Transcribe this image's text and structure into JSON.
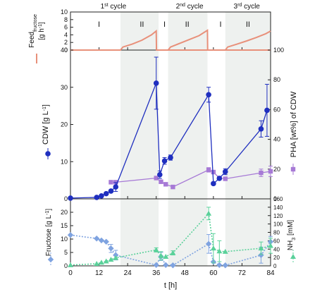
{
  "chart_data": [
    {
      "type": "line",
      "panel": "feed",
      "ylabel_line1": "Feed",
      "ylabel_sub": "fructose",
      "ylabel_line2": "[g h",
      "ylabel_sup": "-1",
      "ylabel_end": "]",
      "ylim": [
        0,
        10
      ],
      "yticks": [
        0,
        2,
        4,
        6,
        8,
        10
      ],
      "xlim": [
        0,
        84
      ],
      "phase_labels": [
        "I",
        "II",
        "I",
        "II",
        "I",
        "II"
      ],
      "phase_label_x": [
        12,
        30,
        39.5,
        49,
        63,
        74.5
      ],
      "cycles": [
        {
          "label_pre": "1",
          "label_sup": "st",
          "label_post": " cycle",
          "x": 18
        },
        {
          "label_pre": "2",
          "label_sup": "nd",
          "label_post": " cycle",
          "x": 50
        },
        {
          "label_pre": "3",
          "label_sup": "rd",
          "label_post": " cycle",
          "x": 74
        }
      ],
      "shaded_ranges": [
        [
          21,
          37
        ],
        [
          41,
          57.5
        ],
        [
          65,
          84
        ]
      ],
      "series": [
        {
          "x": [
            0,
            21,
            22,
            26,
            30,
            34,
            36,
            36.1,
            84
          ],
          "y": [
            0,
            0,
            0.8,
            1.6,
            2.6,
            4.0,
            5.0,
            0,
            0
          ]
        },
        {
          "x": [
            41,
            42,
            46,
            50,
            54,
            57.5,
            57.6
          ],
          "y": [
            0,
            0.8,
            1.8,
            2.8,
            3.8,
            5.2,
            0
          ]
        },
        {
          "x": [
            65,
            66,
            70,
            74,
            78,
            82,
            84
          ],
          "y": [
            0,
            0.8,
            1.6,
            2.4,
            3.3,
            4.3,
            5.0
          ]
        }
      ],
      "line_color": "#e8907a"
    },
    {
      "type": "line",
      "panel": "cdw",
      "ylabel_left": "CDW [g L",
      "ylabel_left_sup": "-1",
      "ylabel_left_end": "]",
      "ylabel_right": "PHA [wt%] of CDW",
      "ylim_left": [
        0,
        40
      ],
      "yticks_left": [
        0,
        10,
        20,
        30,
        40
      ],
      "ylim_right": [
        0,
        100
      ],
      "yticks_right": [
        0,
        20,
        40,
        60,
        80,
        100
      ],
      "xlim": [
        0,
        84
      ],
      "series": [
        {
          "axis": "left",
          "color": "#1f2fbf",
          "marker": "circle",
          "x": [
            0,
            11,
            13,
            15,
            17,
            19,
            36,
            37.5,
            39.5,
            42,
            58,
            60,
            62.5,
            65,
            80,
            82.5
          ],
          "y": [
            0.2,
            0.4,
            0.8,
            1.4,
            2.1,
            3.2,
            31.1,
            6.5,
            10.2,
            11.1,
            28.0,
            4.1,
            5.5,
            7.3,
            18.8,
            23.8
          ],
          "err": [
            0,
            0,
            0,
            0,
            0,
            1.2,
            7.0,
            1.0,
            0.9,
            0.7,
            2.0,
            0.4,
            0.4,
            0.8,
            2.2,
            7.0
          ]
        },
        {
          "axis": "right",
          "color": "#a77ad6",
          "marker": "square",
          "x": [
            17,
            19,
            36,
            38,
            40,
            43,
            58,
            60,
            62.5,
            65,
            80,
            84
          ],
          "y": [
            11.2,
            11.2,
            14.0,
            11.5,
            9.8,
            8.0,
            19.5,
            18.0,
            14.0,
            13.5,
            17.5,
            18.5
          ],
          "err": [
            0,
            0,
            0,
            0,
            0,
            0,
            1.5,
            0,
            0,
            0,
            2.5,
            3.5
          ]
        }
      ]
    },
    {
      "type": "line",
      "panel": "fructose_nh3",
      "ylabel_left": "Fructose [g L",
      "ylabel_left_sup": "-1",
      "ylabel_left_end": "]",
      "ylabel_right_pre": "NH",
      "ylabel_right_sub": "3",
      "ylabel_right_post": " [mM]",
      "ylim_left": [
        0,
        25
      ],
      "yticks_left": [
        0,
        5,
        10,
        15,
        20
      ],
      "ylim_right": [
        0,
        160
      ],
      "yticks_right": [
        0,
        20,
        40,
        60,
        80,
        100,
        120,
        140,
        160
      ],
      "xlim": [
        0,
        84
      ],
      "xticks": [
        0,
        12,
        24,
        36,
        48,
        60,
        72,
        84
      ],
      "xlabel": "t [h]",
      "series": [
        {
          "axis": "left",
          "color": "#7fa3e0",
          "marker": "diamond",
          "x": [
            0,
            11,
            13,
            15,
            17,
            19,
            36,
            38,
            40,
            43,
            58,
            60,
            62.5,
            65,
            80,
            84
          ],
          "y": [
            11.5,
            10.2,
            9.5,
            9.0,
            6.5,
            4.0,
            0.3,
            3.5,
            0.3,
            0.2,
            8.2,
            1.5,
            0.3,
            0.2,
            4.0,
            9.0
          ],
          "err": [
            0,
            0,
            0,
            0,
            1.5,
            1.8,
            0,
            1.5,
            0,
            0,
            3.5,
            0,
            0,
            0,
            3.0,
            2.0
          ]
        },
        {
          "axis": "right",
          "color": "#5ad19a",
          "marker": "triangle",
          "x": [
            0,
            11,
            13,
            15,
            17,
            19,
            36,
            38,
            40,
            43,
            58,
            60,
            62.5,
            65,
            80,
            84
          ],
          "y": [
            2,
            5,
            8,
            11,
            15,
            19,
            38,
            24,
            22,
            31,
            125,
            42,
            35,
            34,
            42,
            48
          ],
          "err": [
            0,
            0,
            0,
            0,
            0,
            0,
            5,
            10,
            0,
            5,
            15,
            35,
            25,
            0,
            15,
            18
          ]
        }
      ]
    }
  ]
}
